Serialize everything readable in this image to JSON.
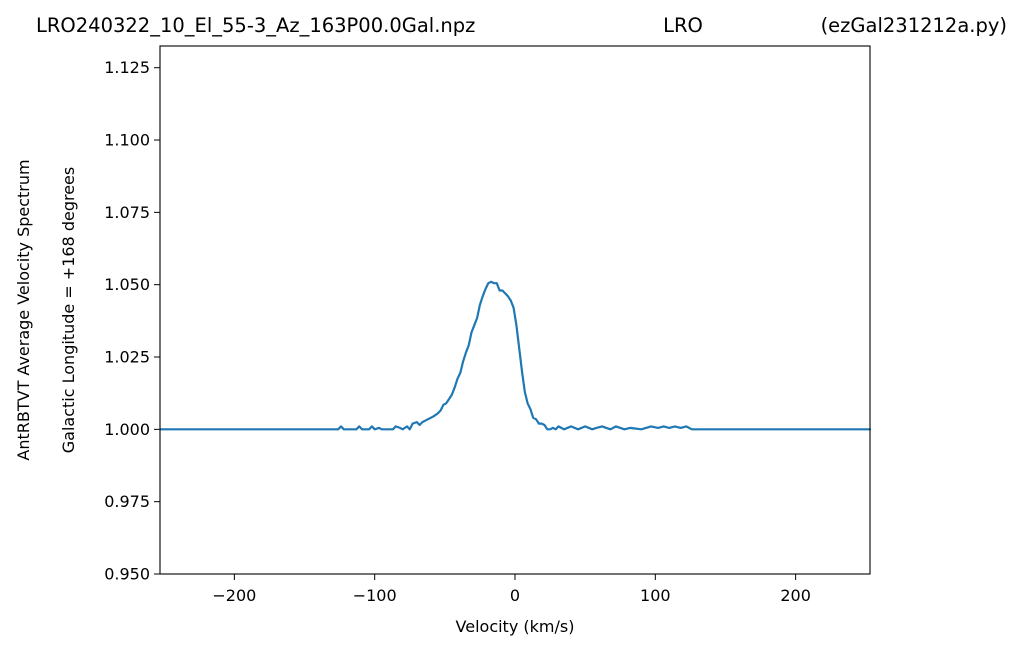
{
  "chart_data": {
    "type": "line",
    "title_left": "LRO240322_10_El_55-3_Az_163P00.0Gal.npz",
    "title_center": "LRO",
    "title_right": "(ezGal231212a.py)",
    "xlabel": "Velocity (km/s)",
    "ylabel": "AntRBTVT Average Velocity Spectrum",
    "ylabel2": "Galactic Longitude = +168 degrees",
    "xlim": [
      -253,
      253
    ],
    "ylim": [
      0.95,
      1.1325
    ],
    "xticks": [
      -200,
      -100,
      0,
      100,
      200
    ],
    "xtick_labels": [
      "−200",
      "−100",
      "0",
      "100",
      "200"
    ],
    "yticks": [
      0.95,
      0.975,
      1.0,
      1.025,
      1.05,
      1.075,
      1.1,
      1.125
    ],
    "ytick_labels": [
      "0.950",
      "0.975",
      "1.000",
      "1.025",
      "1.050",
      "1.075",
      "1.100",
      "1.125"
    ],
    "grid": false,
    "line_color": "#1f77b4",
    "series": [
      {
        "x": [
          -253,
          -126,
          -124,
          -122,
          -113,
          -111,
          -109,
          -104,
          -102,
          -100,
          -97,
          -95,
          -87,
          -85,
          -82,
          -80,
          -77,
          -75,
          -73,
          -70,
          -68,
          -66,
          -64,
          -62,
          -60,
          -58,
          -55,
          -53,
          -51,
          -49,
          -47,
          -45,
          -43,
          -41,
          -39,
          -37,
          -35,
          -33,
          -31,
          -29,
          -27,
          -25,
          -23,
          -21,
          -19,
          -17,
          -15,
          -13,
          -11,
          -9,
          -7,
          -5,
          -3,
          -1,
          1,
          3,
          5,
          7,
          9,
          11,
          13,
          15,
          17,
          19,
          21,
          23,
          25,
          27,
          29,
          31,
          33,
          35,
          40,
          45,
          50,
          55,
          58,
          62,
          68,
          72,
          78,
          82,
          90,
          97,
          102,
          106,
          110,
          114,
          118,
          122,
          126,
          129,
          253
        ],
        "y": [
          1.0,
          1.0,
          1.001,
          1.0,
          1.0,
          1.001,
          1.0,
          1.0,
          1.001,
          1.0,
          1.0005,
          1.0,
          1.0,
          1.001,
          1.0005,
          1.0,
          1.001,
          1.0,
          1.002,
          1.0025,
          1.0015,
          1.0025,
          1.003,
          1.0035,
          1.004,
          1.0045,
          1.0055,
          1.0065,
          1.0085,
          1.009,
          1.0105,
          1.012,
          1.0145,
          1.0175,
          1.0195,
          1.0235,
          1.0265,
          1.029,
          1.0335,
          1.036,
          1.0385,
          1.043,
          1.046,
          1.0485,
          1.0505,
          1.051,
          1.0505,
          1.0505,
          1.048,
          1.048,
          1.047,
          1.046,
          1.0445,
          1.042,
          1.036,
          1.028,
          1.02,
          1.013,
          1.009,
          1.007,
          1.004,
          1.0035,
          1.002,
          1.002,
          1.0015,
          1.0,
          1.0,
          1.0005,
          1.0,
          1.001,
          1.0005,
          1.0,
          1.001,
          1.0,
          1.001,
          1.0,
          1.0005,
          1.001,
          1.0,
          1.001,
          1.0,
          1.0005,
          1.0,
          1.001,
          1.0005,
          1.001,
          1.0005,
          1.001,
          1.0005,
          1.001,
          1.0,
          1.0,
          1.0
        ]
      }
    ]
  }
}
